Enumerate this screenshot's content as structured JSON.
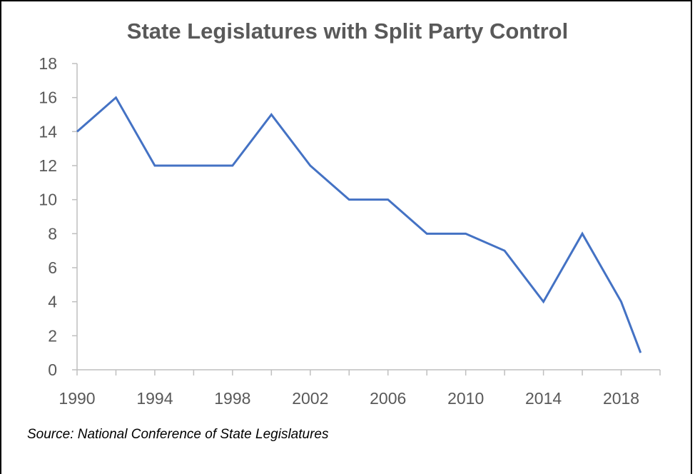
{
  "chart_data": {
    "type": "line",
    "title": "State Legislatures with Split Party Control",
    "source": "Source: National Conference of State Legislatures",
    "x": [
      1990,
      1992,
      1994,
      1996,
      1998,
      2000,
      2002,
      2004,
      2006,
      2008,
      2010,
      2012,
      2014,
      2016,
      2018,
      2019
    ],
    "series": [
      {
        "values": [
          14,
          16,
          12,
          12,
          12,
          15,
          12,
          10,
          10,
          8,
          8,
          7,
          4,
          8,
          4,
          1
        ],
        "color": "#4472C4"
      }
    ],
    "xlim": [
      1990,
      2020
    ],
    "ylim": [
      0,
      18
    ],
    "x_tick_labels": [
      "1990",
      "1994",
      "1998",
      "2002",
      "2006",
      "2010",
      "2014",
      "2018"
    ],
    "y_tick_labels": [
      "0",
      "2",
      "4",
      "6",
      "8",
      "10",
      "12",
      "14",
      "16",
      "18"
    ],
    "grid": false,
    "legend": "none",
    "axis_color": "#BFBFBF"
  }
}
